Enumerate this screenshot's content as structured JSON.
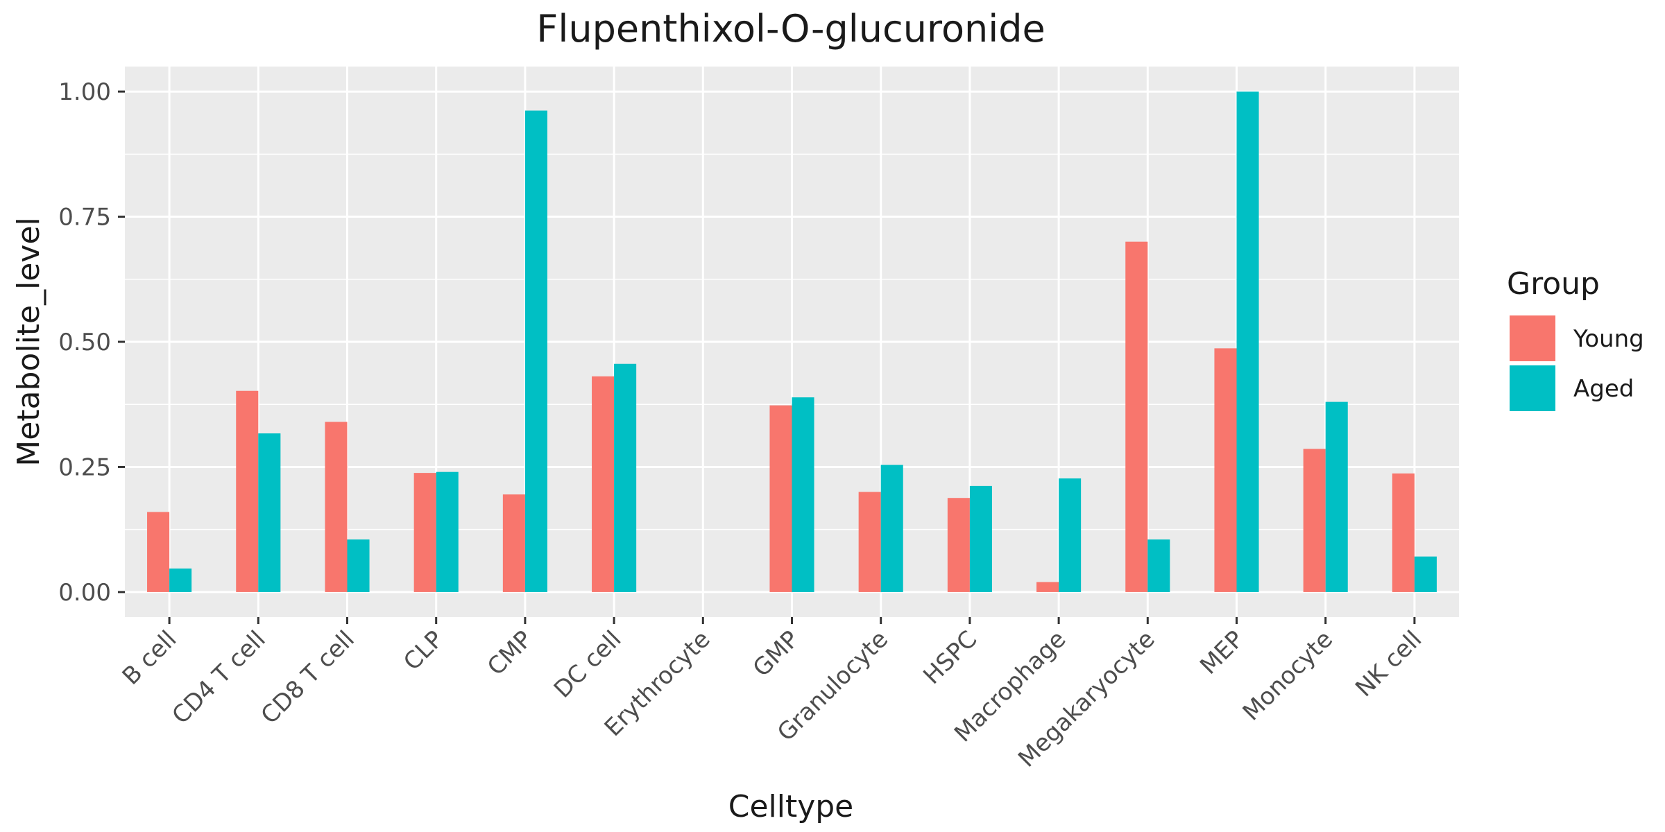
{
  "chart_data": {
    "type": "bar",
    "title": "Flupenthixol-O-glucuronide",
    "xlabel": "Celltype",
    "ylabel": "Metabolite_level",
    "ylim": [
      -0.05,
      1.05
    ],
    "yticks": [
      0.0,
      0.25,
      0.5,
      0.75,
      1.0
    ],
    "ytick_labels": [
      "0.00",
      "0.25",
      "0.50",
      "0.75",
      "1.00"
    ],
    "grid": true,
    "legend_position": "right",
    "legend_title": "Group",
    "categories": [
      "B cell",
      "CD4 T cell",
      "CD8 T cell",
      "CLP",
      "CMP",
      "DC cell",
      "Erythrocyte",
      "GMP",
      "Granulocyte",
      "HSPC",
      "Macrophage",
      "Megakaryocyte",
      "MEP",
      "Monocyte",
      "NK cell"
    ],
    "series": [
      {
        "name": "Young",
        "color": "#F8766D",
        "values": [
          0.16,
          0.402,
          0.34,
          0.238,
          0.195,
          0.431,
          0.0,
          0.373,
          0.2,
          0.188,
          0.02,
          0.7,
          0.487,
          0.286,
          0.237
        ]
      },
      {
        "name": "Aged",
        "color": "#00BFC4",
        "values": [
          0.047,
          0.317,
          0.105,
          0.24,
          0.962,
          0.456,
          0.0,
          0.389,
          0.254,
          0.212,
          0.227,
          0.105,
          1.0,
          0.38,
          0.071
        ]
      }
    ]
  }
}
